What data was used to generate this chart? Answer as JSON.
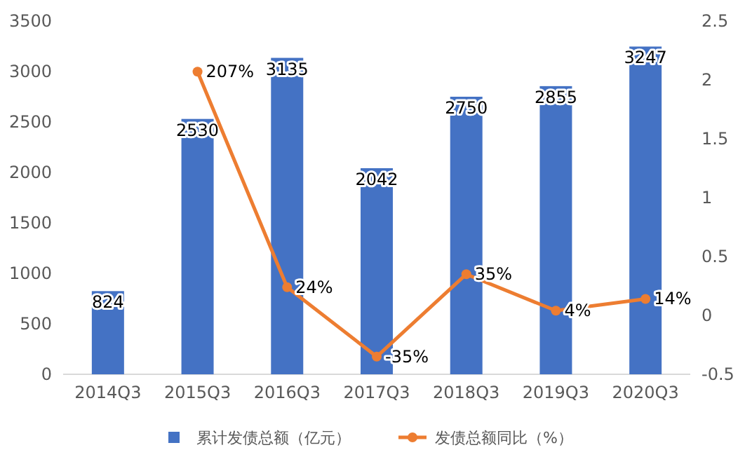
{
  "chart_data": {
    "type": "bar",
    "categories": [
      "2014Q3",
      "2015Q3",
      "2016Q3",
      "2017Q3",
      "2018Q3",
      "2019Q3",
      "2020Q3"
    ],
    "series": [
      {
        "name": "累计发债总额（亿元）",
        "color": "#4472c4",
        "values": [
          824,
          2530,
          3135,
          2042,
          2750,
          2855,
          3247
        ],
        "value_labels": [
          "824",
          "2530",
          "3135",
          "2042",
          "2750",
          "2855",
          "3247"
        ]
      },
      {
        "name": "发债总额同比（%）",
        "type": "line",
        "axis": "y2",
        "color": "#ed7d31",
        "marker": "circle",
        "values": [
          null,
          2.07,
          0.24,
          -0.35,
          0.35,
          0.04,
          0.14
        ],
        "value_labels": [
          null,
          "207%",
          "24%",
          "-35%",
          "35%",
          "4%",
          "14%"
        ]
      }
    ],
    "ylim": [
      0,
      3500
    ],
    "yticks": [
      0,
      500,
      1000,
      1500,
      2000,
      2500,
      3000,
      3500
    ],
    "y2lim": [
      -0.5,
      2.5
    ],
    "y2ticks": [
      -0.5,
      0,
      0.5,
      1,
      1.5,
      2,
      2.5
    ],
    "legend": "bottom",
    "grid": false
  }
}
